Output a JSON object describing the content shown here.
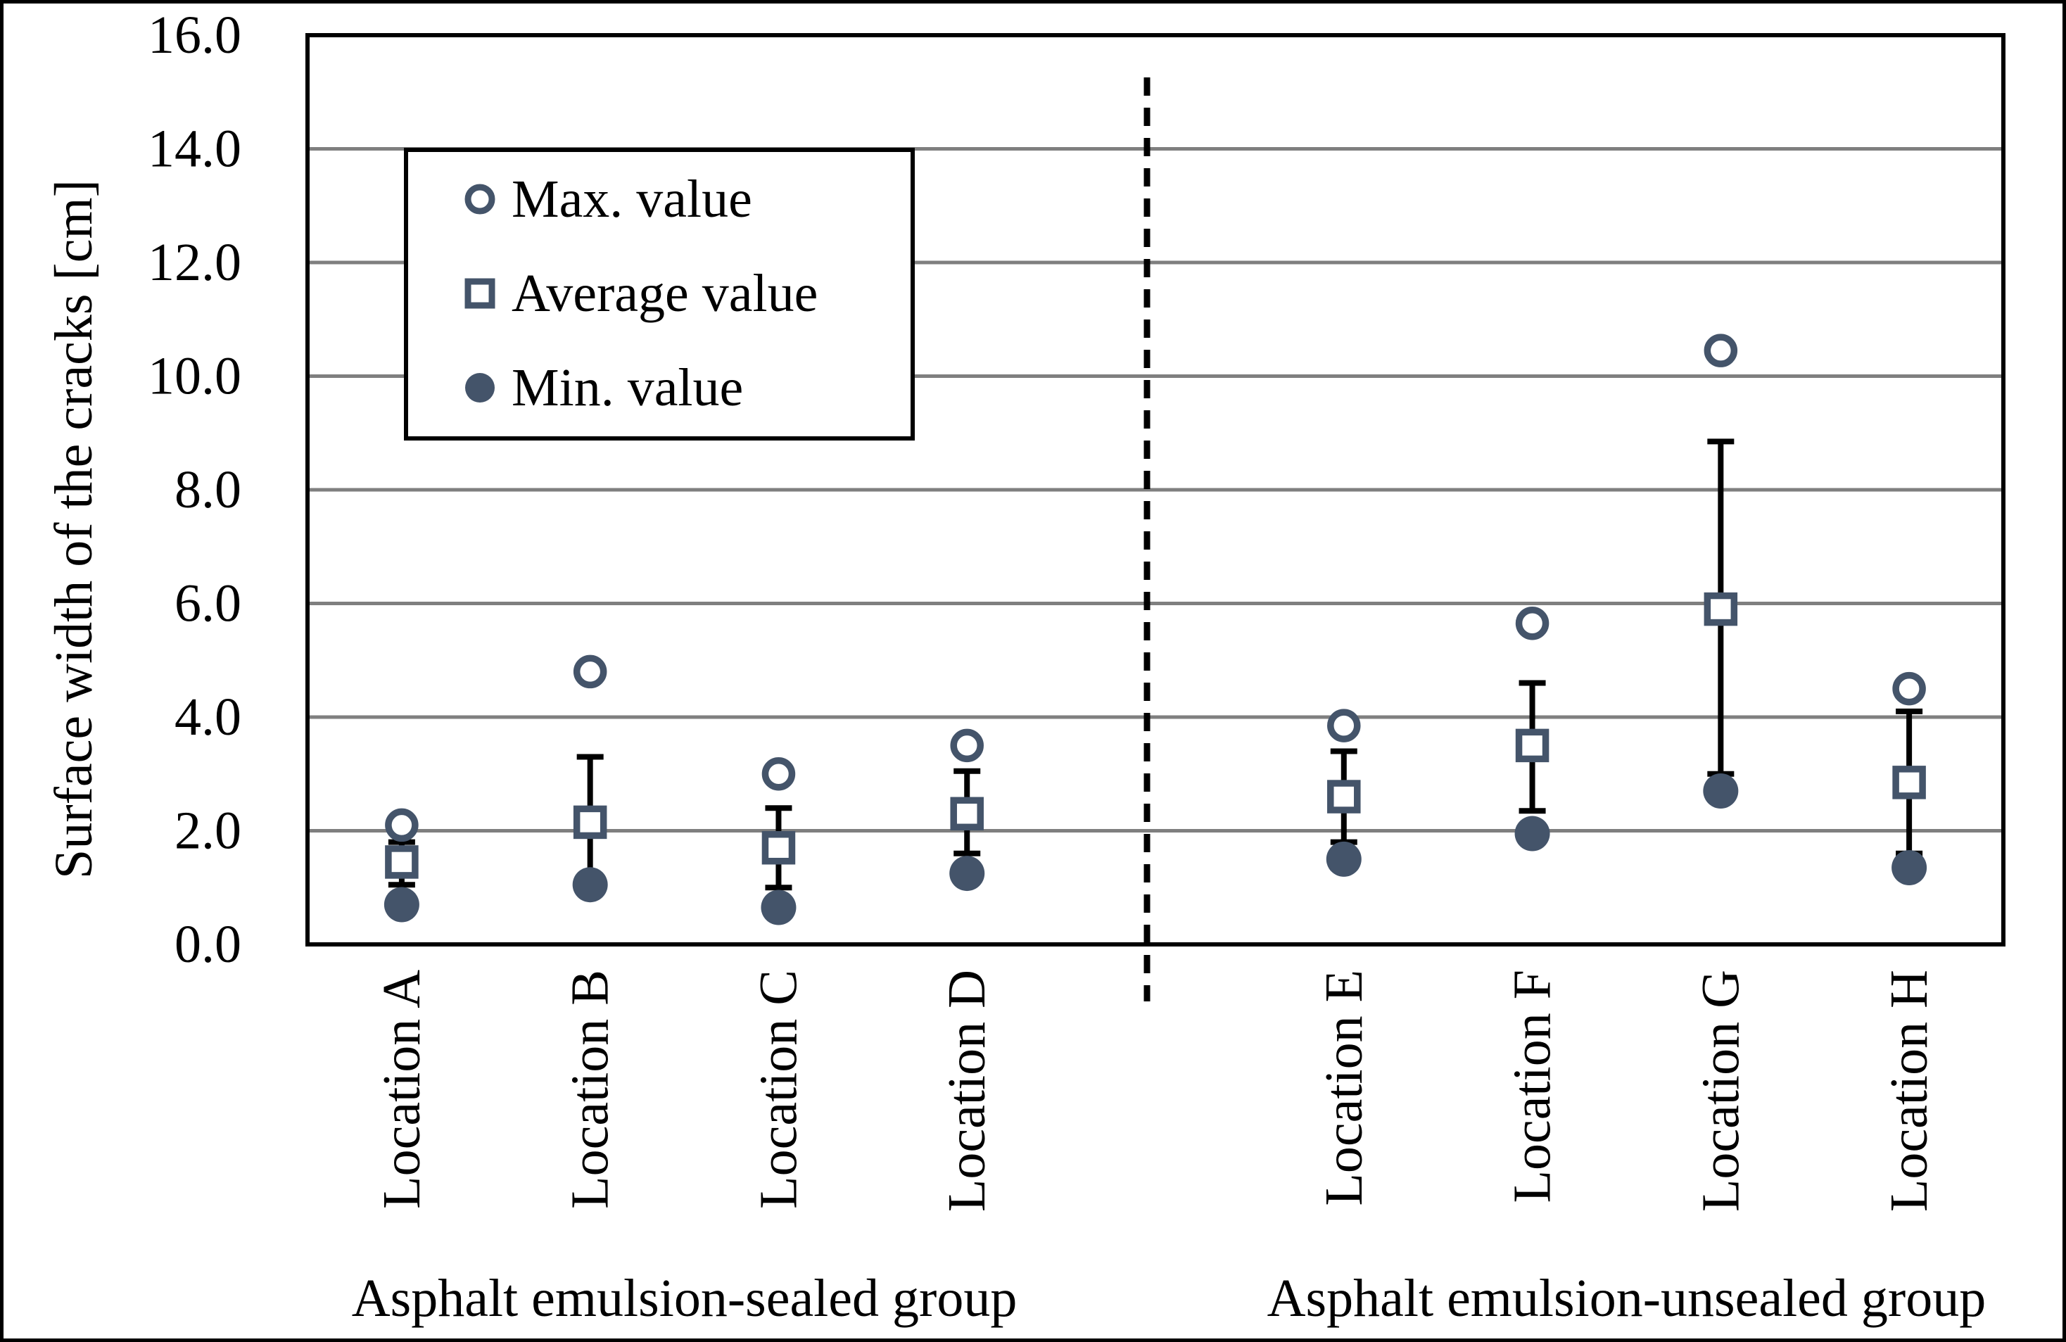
{
  "figure": {
    "background": "#FFFFFF",
    "frame_color": "#000000"
  },
  "chart_data": {
    "type": "scatter",
    "title": "",
    "xlabel": "",
    "ylabel": "Surface width of the cracks [cm]",
    "ylim": [
      0.0,
      16.0
    ],
    "ytick_step": 2.0,
    "ytick_labels": [
      "0.0",
      "2.0",
      "4.0",
      "6.0",
      "8.0",
      "10.0",
      "12.0",
      "14.0",
      "16.0"
    ],
    "grid": {
      "horizontal": true,
      "color": "#7F7F7F"
    },
    "marker_color": "#44546A",
    "error_bar_color": "#000000",
    "categories": [
      "Location A",
      "Location B",
      "Location C",
      "Location D",
      "Location E",
      "Location F",
      "Location G",
      "Location H"
    ],
    "groups": [
      {
        "label": "Asphalt emulsion-sealed group",
        "category_indexes": [
          0,
          1,
          2,
          3
        ]
      },
      {
        "label": "Asphalt emulsion-unsealed group",
        "category_indexes": [
          4,
          5,
          6,
          7
        ]
      }
    ],
    "group_divider": {
      "style": "vertical dashed line between Location D and Location E",
      "color": "#000000"
    },
    "legend": {
      "position": "inside top-left",
      "entries": [
        {
          "label": "Max. value",
          "marker": "open-circle"
        },
        {
          "label": "Average value",
          "marker": "open-square"
        },
        {
          "label": "Min. value",
          "marker": "filled-circle"
        }
      ]
    },
    "series": [
      {
        "name": "Max. value",
        "marker": "open-circle",
        "values": [
          2.1,
          4.8,
          3.0,
          3.5,
          3.85,
          5.65,
          10.45,
          4.5
        ]
      },
      {
        "name": "Average value",
        "marker": "open-square",
        "values": [
          1.45,
          2.15,
          1.7,
          2.3,
          2.6,
          3.5,
          5.9,
          2.85
        ]
      },
      {
        "name": "Min. value",
        "marker": "filled-circle",
        "values": [
          0.7,
          1.05,
          0.65,
          1.25,
          1.5,
          1.95,
          2.7,
          1.35
        ]
      }
    ],
    "error_bars": {
      "attached_to": "Average value",
      "upper_ends": [
        1.8,
        3.3,
        2.4,
        3.05,
        3.4,
        4.6,
        8.85,
        4.1
      ],
      "lower_ends": [
        1.05,
        1.05,
        1.0,
        1.6,
        1.8,
        2.35,
        3.0,
        1.6
      ]
    }
  }
}
